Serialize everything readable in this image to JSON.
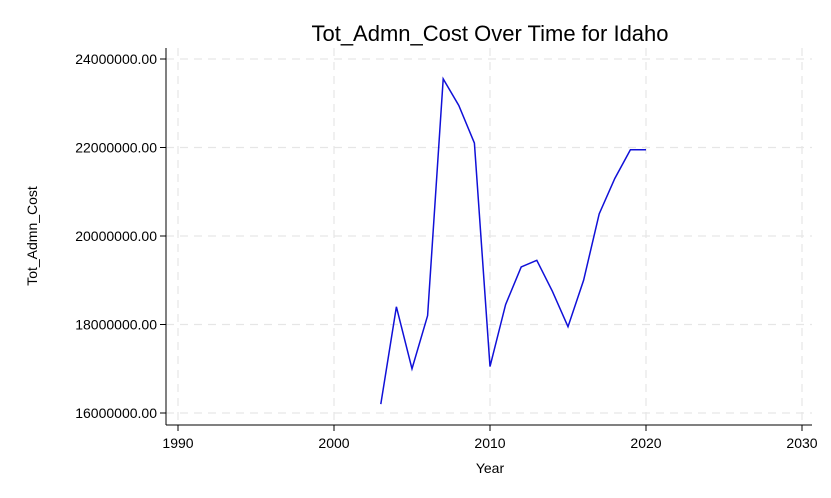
{
  "chart_data": {
    "type": "line",
    "title": "Tot_Admn_Cost Over Time for Idaho",
    "xlabel": "Year",
    "ylabel": "Tot_Admn_Cost",
    "xlim": [
      1990,
      2030
    ],
    "ylim": [
      16000000,
      24000000
    ],
    "x_ticks": [
      1990,
      2000,
      2010,
      2020,
      2030
    ],
    "y_ticks": [
      16000000,
      18000000,
      20000000,
      22000000,
      24000000
    ],
    "y_tick_labels": [
      "16000000.00",
      "18000000.00",
      "20000000.00",
      "22000000.00",
      "24000000.00"
    ],
    "grid": true,
    "series": [
      {
        "color": "#1010d8",
        "x": [
          2003,
          2004,
          2005,
          2006,
          2007,
          2008,
          2009,
          2010,
          2011,
          2012,
          2013,
          2014,
          2015,
          2016,
          2017,
          2018,
          2019,
          2020
        ],
        "y": [
          16200000,
          18400000,
          17000000,
          18200000,
          23550000,
          22950000,
          22100000,
          17050000,
          18450000,
          19300000,
          19450000,
          18750000,
          17950000,
          19000000,
          20500000,
          21300000,
          21950000,
          21950000
        ]
      }
    ]
  }
}
